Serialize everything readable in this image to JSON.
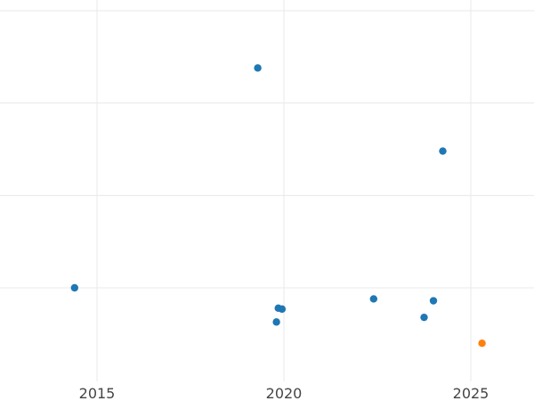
{
  "chart_data": {
    "type": "scatter",
    "title": "",
    "xlabel": "",
    "ylabel": "",
    "xlim": [
      2012.4,
      2026.7
    ],
    "grid": true,
    "x_ticks": [
      2015,
      2020,
      2025
    ],
    "x_tick_labels": [
      "2015",
      "2020",
      "2025"
    ],
    "y_gridlines": [
      1,
      2,
      3,
      4
    ],
    "ylim": [
      0.2,
      4.3
    ],
    "series": [
      {
        "color": "#1f77b4",
        "points": [
          {
            "x": 2014.4,
            "y": 1.0
          },
          {
            "x": 2019.3,
            "y": 3.38
          },
          {
            "x": 2019.8,
            "y": 0.63
          },
          {
            "x": 2019.85,
            "y": 0.78
          },
          {
            "x": 2019.95,
            "y": 0.77
          },
          {
            "x": 2022.4,
            "y": 0.88
          },
          {
            "x": 2023.75,
            "y": 0.68
          },
          {
            "x": 2024.0,
            "y": 0.86
          },
          {
            "x": 2024.25,
            "y": 2.48
          }
        ]
      },
      {
        "color": "#ff7f0e",
        "points": [
          {
            "x": 2025.3,
            "y": 0.4
          }
        ]
      }
    ]
  }
}
